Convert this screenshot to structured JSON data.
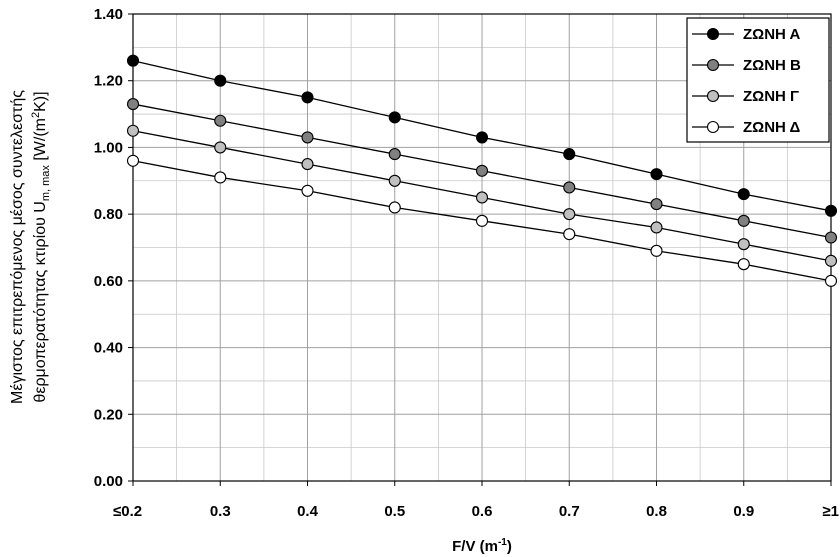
{
  "chart_data": {
    "type": "line",
    "categories": [
      "≤0.2",
      "0.3",
      "0.4",
      "0.5",
      "0.6",
      "0.7",
      "0.8",
      "0.9",
      "≥1"
    ],
    "x": [
      0.2,
      0.3,
      0.4,
      0.5,
      0.6,
      0.7,
      0.8,
      0.9,
      1.0
    ],
    "series": [
      {
        "name": "ΖΩΝΗ Α",
        "marker_fill": "#000000",
        "values": [
          1.26,
          1.2,
          1.15,
          1.09,
          1.03,
          0.98,
          0.92,
          0.86,
          0.81
        ]
      },
      {
        "name": "ΖΩΝΗ Β",
        "marker_fill": "#808080",
        "values": [
          1.13,
          1.08,
          1.03,
          0.98,
          0.93,
          0.88,
          0.83,
          0.78,
          0.73
        ]
      },
      {
        "name": "ΖΩΝΗ Γ",
        "marker_fill": "#c0c0c0",
        "values": [
          1.05,
          1.0,
          0.95,
          0.9,
          0.85,
          0.8,
          0.76,
          0.71,
          0.66
        ]
      },
      {
        "name": "ΖΩΝΗ Δ",
        "marker_fill": "#ffffff",
        "values": [
          0.96,
          0.91,
          0.87,
          0.82,
          0.78,
          0.74,
          0.69,
          0.65,
          0.6
        ]
      }
    ],
    "ylim": [
      0,
      1.4
    ],
    "yticks": [
      "0.00",
      "0.20",
      "0.40",
      "0.60",
      "0.80",
      "1.00",
      "1.20",
      "1.40"
    ],
    "xlabel_main": "F/V (m",
    "xlabel_sup": "-1",
    "xlabel_end": ")",
    "ylabel_line1": "Μέγιστος επιτρεπόμενος μέσος συντελεστής",
    "ylabel_line2_main": "θερμοπερατότητας κτιρίου U",
    "ylabel_line2_sub": "m, max",
    "ylabel_line2_mid": " [W/(m",
    "ylabel_line2_sup": "2",
    "ylabel_line2_end": "K)]",
    "grid": true,
    "legend_position": "top-right",
    "line_color": "#000000",
    "grid_color": "#a0a0a0",
    "plot_background": "#ffffff"
  }
}
